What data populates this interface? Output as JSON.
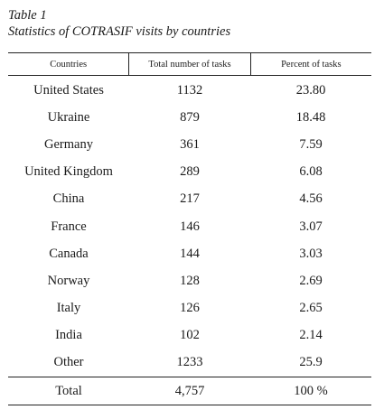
{
  "caption": {
    "label": "Table 1",
    "title": "Statistics of COTRASIF visits by countries"
  },
  "table": {
    "headers": [
      "Countries",
      "Total number of tasks",
      "Percent of tasks"
    ],
    "rows": [
      [
        "United States",
        "1132",
        "23.80"
      ],
      [
        "Ukraine",
        "879",
        "18.48"
      ],
      [
        "Germany",
        "361",
        "7.59"
      ],
      [
        "United Kingdom",
        "289",
        "6.08"
      ],
      [
        "China",
        "217",
        "4.56"
      ],
      [
        "France",
        "146",
        "3.07"
      ],
      [
        "Canada",
        "144",
        "3.03"
      ],
      [
        "Norway",
        "128",
        "2.69"
      ],
      [
        "Italy",
        "126",
        "2.65"
      ],
      [
        "India",
        "102",
        "2.14"
      ],
      [
        "Other",
        "1233",
        "25.9"
      ]
    ],
    "total": [
      "Total",
      "4,757",
      "100 %"
    ]
  }
}
